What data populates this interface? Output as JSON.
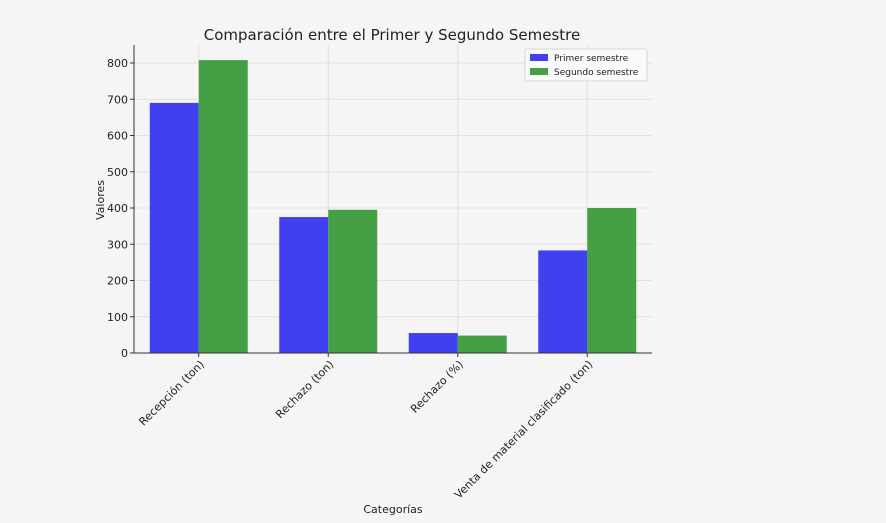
{
  "chart_data": {
    "type": "bar",
    "title": "Comparación entre el Primer y Segundo Semestre",
    "xlabel": "Categorías",
    "ylabel": "Valores",
    "categories": [
      "Recepción (ton)",
      "Rechazo (ton)",
      "Rechazo (%)",
      "Venta de material clasificado (ton)"
    ],
    "series": [
      {
        "name": "Primer semestre",
        "color": "#4040f0",
        "values": [
          690,
          375,
          55,
          283
        ]
      },
      {
        "name": "Segundo semestre",
        "color": "#45a045",
        "values": [
          808,
          395,
          48,
          400
        ]
      }
    ],
    "ylim": [
      0,
      850
    ],
    "yticks": [
      0,
      100,
      200,
      300,
      400,
      500,
      600,
      700,
      800
    ],
    "grid": true,
    "legend_position": "top-right"
  }
}
